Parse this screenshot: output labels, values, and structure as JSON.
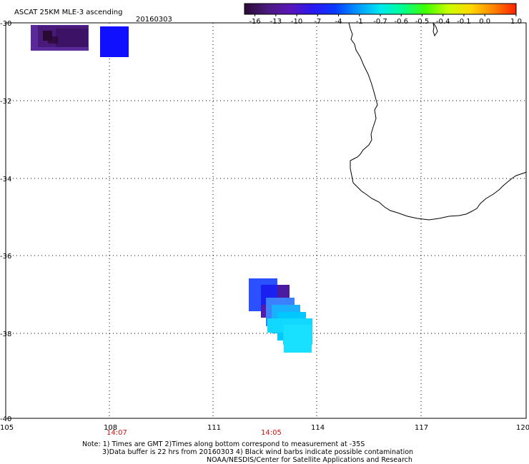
{
  "header": {
    "title": "ASCAT 25KM MLE-3 ascending",
    "date": "20160303"
  },
  "colorbar": {
    "labels": [
      "-16",
      "-13",
      "-10",
      "-7",
      "-4",
      "-1",
      "-0.7",
      "-0.6",
      "-0.5",
      "-0.4",
      "-0.1",
      "0.0",
      "1.0"
    ],
    "colors": [
      "#2a0a35",
      "#4a1a7a",
      "#5a16b8",
      "#2a18f0",
      "#0838ff",
      "#0098ff",
      "#00e8f0",
      "#00ff90",
      "#40ff00",
      "#c8ff00",
      "#ffd800",
      "#ff8400",
      "#ff2000"
    ]
  },
  "axes": {
    "lat_ticks": [
      "-30",
      "-32",
      "-34",
      "-36",
      "-38",
      "-40"
    ],
    "lon_ticks": [
      "105",
      "108",
      "111",
      "114",
      "117",
      "120"
    ]
  },
  "time_labels": [
    "14:07",
    "14:05"
  ],
  "footer": {
    "line1": "Note: 1) Times are GMT 2)Times along bottom correspond to measurement at -35S",
    "line2": "3)Data buffer is 22 hrs from 20160303 4) Black wind barbs indicate possible contamination",
    "line3": "NOAA/NESDIS/Center for Satellite Applications and Research"
  },
  "map": {
    "coastline": "Western Australia (south-west coast)",
    "cell_colors": [
      "#5a2a9a",
      "#4a1a7a",
      "#2a0a35",
      "#1010ff",
      "#2a18f0",
      "#2a50ff",
      "#3a80ff",
      "#00c8ff",
      "#10d8ff"
    ]
  }
}
